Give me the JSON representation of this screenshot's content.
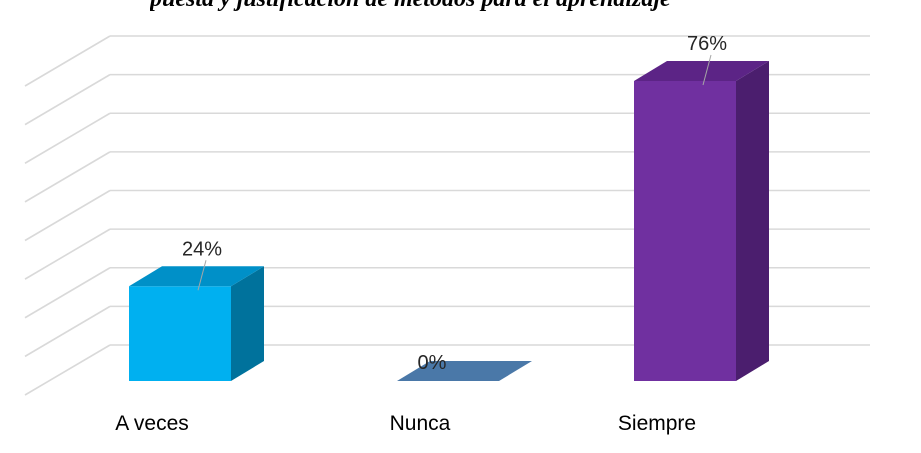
{
  "header_text": "puesta y justificación de métodos para el aprendizaje",
  "chart_data": {
    "type": "bar",
    "categories": [
      "A veces",
      "Nunca",
      "Siempre"
    ],
    "values": [
      24,
      0,
      76
    ],
    "data_labels": [
      "24%",
      "0%",
      "76%"
    ],
    "ylim": [
      0,
      80
    ],
    "grid": true,
    "legend": "none",
    "colors": {
      "front": [
        "#00b0f0",
        "#4a78a8",
        "#7030a0"
      ],
      "top": [
        "#0090c8",
        "#4a78a8",
        "#5c2486"
      ],
      "side": [
        "#00729c",
        "#3a6090",
        "#4b1e6e"
      ]
    }
  }
}
